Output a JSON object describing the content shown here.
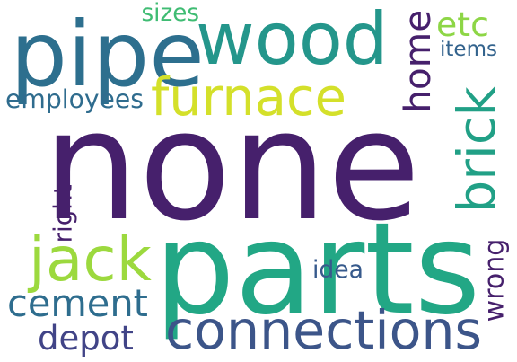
{
  "cloud": {
    "words": [
      {
        "text": "none",
        "color": "#46206c",
        "weight": 1.0
      },
      {
        "text": "parts",
        "color": "#22a785",
        "weight": 0.7
      },
      {
        "text": "wood",
        "color": "#24968b",
        "weight": 0.45
      },
      {
        "text": "pipe",
        "color": "#2d6f8e",
        "weight": 0.45
      },
      {
        "text": "connections",
        "color": "#3c5589",
        "weight": 0.35
      },
      {
        "text": "furnace",
        "color": "#d4e02a",
        "weight": 0.32
      },
      {
        "text": "jack",
        "color": "#9cd93e",
        "weight": 0.32
      },
      {
        "text": "cement",
        "color": "#2e6d8e",
        "weight": 0.28
      },
      {
        "text": "brick",
        "color": "#21a086",
        "weight": 0.28
      },
      {
        "text": "home",
        "color": "#46206c",
        "weight": 0.22
      },
      {
        "text": "etc",
        "color": "#8dd646",
        "weight": 0.22
      },
      {
        "text": "depot",
        "color": "#414487",
        "weight": 0.2
      },
      {
        "text": "employees",
        "color": "#2f6c8e",
        "weight": 0.15
      },
      {
        "text": "sizes",
        "color": "#3fbc73",
        "weight": 0.13
      },
      {
        "text": "items",
        "color": "#33638d",
        "weight": 0.13
      },
      {
        "text": "idea",
        "color": "#375a8c",
        "weight": 0.13
      },
      {
        "text": "wrong",
        "color": "#46206c",
        "weight": 0.13
      },
      {
        "text": "right",
        "color": "#46206c",
        "weight": 0.13
      }
    ]
  }
}
